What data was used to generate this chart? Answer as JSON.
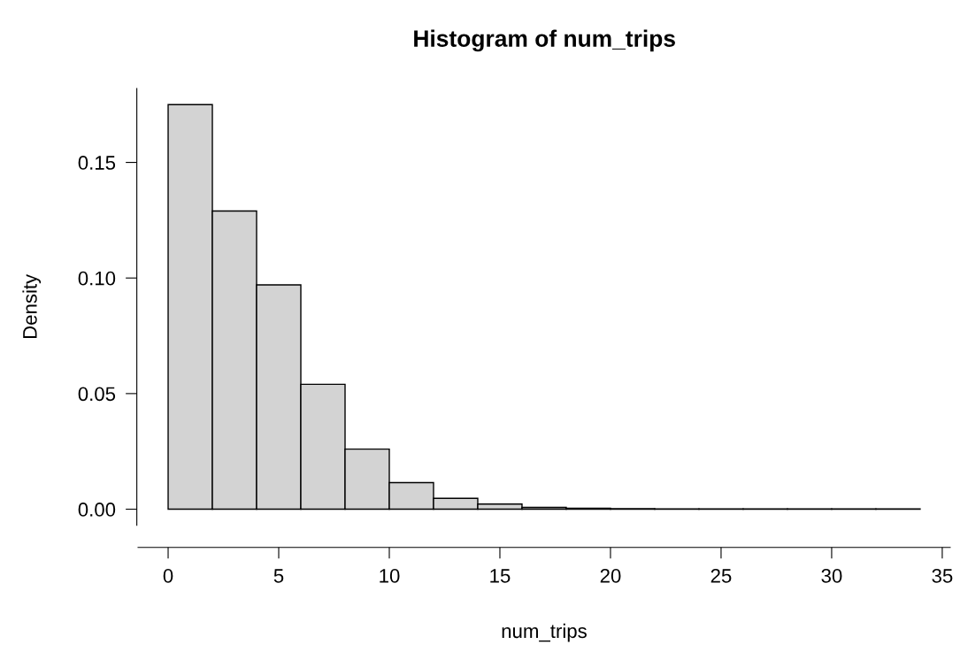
{
  "chart_data": {
    "type": "histogram",
    "title": "Histogram of num_trips",
    "xlabel": "num_trips",
    "ylabel": "Density",
    "bins": [
      0,
      2,
      4,
      6,
      8,
      10,
      12,
      14,
      16,
      18,
      20,
      22,
      24,
      26,
      28,
      30,
      32,
      34
    ],
    "values": [
      0.175,
      0.129,
      0.097,
      0.054,
      0.026,
      0.0115,
      0.0047,
      0.0022,
      0.0008,
      0.0004,
      0.0002,
      0.0001,
      0.0001,
      0.0001,
      0.0001,
      0.0001,
      0.0001
    ],
    "color": "#d3d3d3",
    "xlim": [
      -1.36,
      35.36
    ],
    "ylim": [
      -0.007,
      0.182
    ],
    "xticks": [
      0,
      5,
      10,
      15,
      20,
      25,
      30,
      35
    ],
    "yticks": [
      {
        "value": 0,
        "label": "0.00"
      },
      {
        "value": 0.05,
        "label": "0.05"
      },
      {
        "value": 0.1,
        "label": "0.10"
      },
      {
        "value": 0.15,
        "label": "0.15"
      }
    ]
  }
}
